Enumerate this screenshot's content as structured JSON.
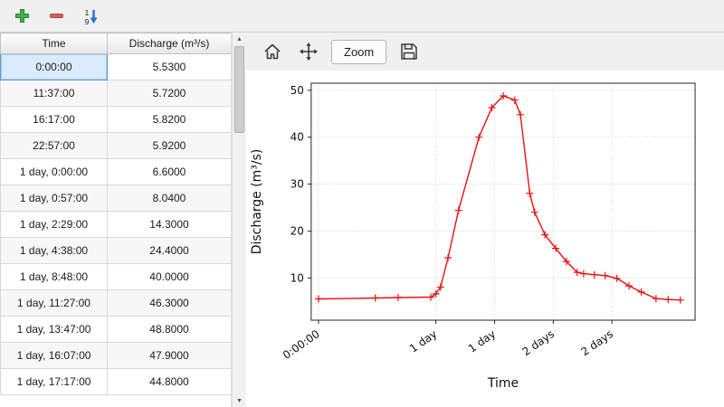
{
  "table_toolbar": {
    "sort_digits": [
      "1",
      "9"
    ]
  },
  "table": {
    "columns": [
      "Time",
      "Discharge (m³/s)"
    ],
    "rows": [
      [
        "0:00:00",
        "5.5300"
      ],
      [
        "11:37:00",
        "5.7200"
      ],
      [
        "16:17:00",
        "5.8200"
      ],
      [
        "22:57:00",
        "5.9200"
      ],
      [
        "1 day, 0:00:00",
        "6.6000"
      ],
      [
        "1 day, 0:57:00",
        "8.0400"
      ],
      [
        "1 day, 2:29:00",
        "14.3000"
      ],
      [
        "1 day, 4:38:00",
        "24.4000"
      ],
      [
        "1 day, 8:48:00",
        "40.0000"
      ],
      [
        "1 day, 11:27:00",
        "46.3000"
      ],
      [
        "1 day, 13:47:00",
        "48.8000"
      ],
      [
        "1 day, 16:07:00",
        "47.9000"
      ],
      [
        "1 day, 17:17:00",
        "44.8000"
      ]
    ],
    "selected": {
      "row": 0,
      "col": 0
    }
  },
  "scrollbar": {
    "up_glyph": "▲",
    "down_glyph": "▼"
  },
  "chart_toolbar": {
    "zoom_label": "Zoom"
  },
  "chart_data": {
    "type": "line",
    "title": "",
    "xlabel": "Time",
    "ylabel": "Discharge (m³/s)",
    "xticks": {
      "positions": [
        0,
        24,
        36,
        48,
        60
      ],
      "labels": [
        "0:00:00",
        "1 day",
        "1 day",
        "2 days",
        "2 days"
      ]
    },
    "yticks": [
      10,
      20,
      30,
      40,
      50
    ],
    "xlim": [
      -1.5,
      77
    ],
    "ylim": [
      1,
      51.5
    ],
    "grid": true,
    "legend": false,
    "series": [
      {
        "name": "discharge",
        "color": "#e81010",
        "marker": "+",
        "x_hours": [
          0,
          11.62,
          16.28,
          22.95,
          24,
          24.95,
          26.48,
          28.63,
          32.8,
          35.45,
          37.78,
          40.12,
          41.28,
          43.2,
          44.2,
          46.3,
          48.5,
          50.7,
          52.9,
          54.2,
          56.4,
          58.6,
          61,
          63.5,
          66,
          69,
          71.5,
          74
        ],
        "values": [
          5.53,
          5.72,
          5.82,
          5.92,
          6.6,
          8.04,
          14.3,
          24.4,
          40,
          46.3,
          48.8,
          47.9,
          44.8,
          28,
          24,
          19.2,
          16.3,
          13.5,
          11.2,
          10.9,
          10.7,
          10.5,
          9.9,
          8.3,
          7,
          5.6,
          5.4,
          5.3
        ]
      }
    ]
  }
}
